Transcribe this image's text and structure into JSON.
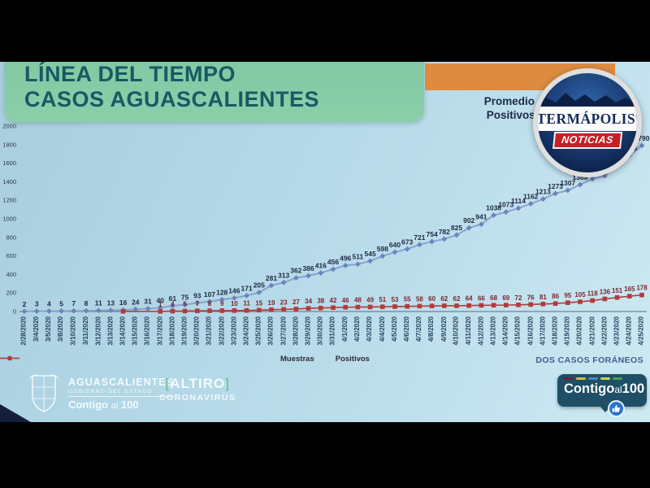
{
  "slide": {
    "title_line1": "LÍNEA DEL TIEMPO",
    "title_line2": "CASOS AGUASCALIENTES",
    "promedio_line1": "Promedio d",
    "promedio_line2": "Positivos 4",
    "annotation_bottom_right": "DOS CASOS FORÁNEOS",
    "footer": {
      "gov_name": "AGUASCALIENTES",
      "gov_sub": "GOBIERNO DEL ESTADO",
      "gov_slogan_word1": "Contigo",
      "gov_slogan_word2": "al",
      "gov_slogan_word3": "100",
      "campaign_line1": "ALTIRO",
      "campaign_bracket_left": "[",
      "campaign_bracket_right": "]",
      "campaign_line2": "CORONAVIRUS",
      "bubble_word1": "Contigo",
      "bubble_word2": "al",
      "bubble_word3": "100"
    }
  },
  "broadcast_logo": {
    "brand": "TERMÁPOLIS",
    "mark": "®",
    "subtitle": "NOTICIAS"
  },
  "colors": {
    "muestras_line": "#8aa2cf",
    "muestras_marker": "#6b84bd",
    "muestras_label": "#1c2740",
    "positivos_line": "#b23b3b",
    "positivos_marker": "#b23b3b",
    "positivos_label": "#7d2430",
    "axis": "#5a6b7a",
    "tick_text": "#2b3a49",
    "dash_colors": [
      "#6b2433",
      "#d8b94a",
      "#4a86c2",
      "#c9d04e",
      "#4c9e53"
    ]
  },
  "chart_data": {
    "type": "line",
    "title": "",
    "xlabel": "",
    "ylabel": "",
    "ylim": [
      0,
      2000
    ],
    "yticks": [
      0,
      200,
      400,
      600,
      800,
      1000,
      1200,
      1400,
      1600,
      1800,
      2000
    ],
    "grid": false,
    "legend_position": "bottom",
    "x": [
      "2/28/2020",
      "3/4/2020",
      "3/5/2020",
      "3/8/2020",
      "3/10/2020",
      "3/11/2020",
      "3/12/2020",
      "3/13/2020",
      "3/14/2020",
      "3/15/2020",
      "3/16/2020",
      "3/17/2020",
      "3/18/2020",
      "3/19/2020",
      "3/20/2020",
      "3/21/2020",
      "3/22/2020",
      "3/23/2020",
      "3/24/2020",
      "3/25/2020",
      "3/26/2020",
      "3/27/2020",
      "3/28/2020",
      "3/29/2020",
      "3/30/2020",
      "3/31/2020",
      "4/1/2020",
      "4/2/2020",
      "4/3/2020",
      "4/4/2020",
      "4/5/2020",
      "4/6/2020",
      "4/7/2020",
      "4/8/2020",
      "4/9/2020",
      "4/10/2020",
      "4/11/2020",
      "4/12/2020",
      "4/13/2020",
      "4/14/2020",
      "4/15/2020",
      "4/16/2020",
      "4/17/2020",
      "4/18/2020",
      "4/19/2020",
      "4/20/2020",
      "4/21/2020",
      "4/22/2020",
      "4/23/2020",
      "4/24/2020",
      "4/25/2020"
    ],
    "series": [
      {
        "name": "Muestras",
        "marker": "diamond",
        "first_labeled_index": 0,
        "values": [
          2,
          3,
          4,
          5,
          7,
          8,
          11,
          13,
          16,
          24,
          31,
          40,
          61,
          75,
          93,
          107,
          128,
          146,
          171,
          205,
          281,
          313,
          362,
          386,
          416,
          456,
          496,
          511,
          545,
          598,
          640,
          673,
          721,
          754,
          782,
          825,
          902,
          941,
          1038,
          1073,
          1114,
          1162,
          1213,
          1273,
          1307,
          1368,
          1430,
          1463,
          1583,
          1683,
          1790
        ]
      },
      {
        "name": "Positivos",
        "marker": "square",
        "first_labeled_index": 11,
        "values": [
          null,
          null,
          null,
          null,
          null,
          null,
          null,
          null,
          2,
          null,
          null,
          1,
          4,
          5,
          7,
          8,
          9,
          10,
          11,
          15,
          19,
          23,
          27,
          34,
          38,
          42,
          46,
          48,
          49,
          51,
          53,
          55,
          58,
          60,
          62,
          62,
          64,
          66,
          68,
          69,
          72,
          76,
          81,
          86,
          95,
          105,
          118,
          136,
          151,
          165,
          178
        ]
      }
    ]
  }
}
